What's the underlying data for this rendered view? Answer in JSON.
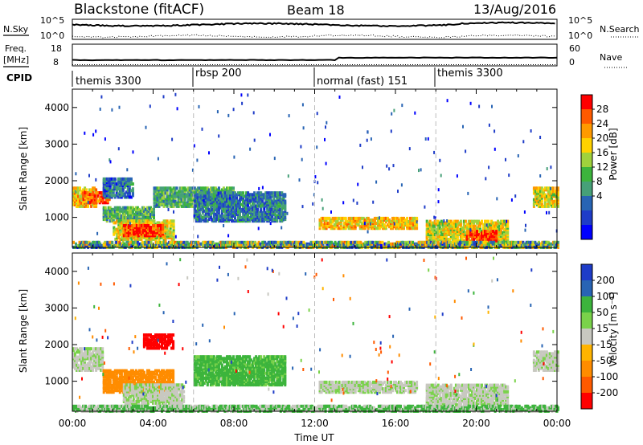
{
  "header": {
    "station": "Blackstone (fitACF)",
    "beam": "Beam 18",
    "date": "13/Aug/2016"
  },
  "aux_panels": {
    "nsky_label": "N.Sky",
    "nsearch_label": "N.Search",
    "nsky_ticks": [
      "10^5",
      "10^0"
    ],
    "nsky_right_ticks": [
      "10^5",
      "10^0"
    ],
    "freq_label_line1": "Freq.",
    "freq_label_line2": "[MHz]",
    "freq_ticks": [
      "18",
      "8"
    ],
    "nave_label": "Nave",
    "nave_ticks": [
      "60",
      "0"
    ],
    "cpid_label": "CPID",
    "cpid_modes": [
      {
        "name": "themis 3300",
        "start_hour": 0
      },
      {
        "name": "rbsp 200",
        "start_hour": 6
      },
      {
        "name": "normal (fast) 151",
        "start_hour": 12
      },
      {
        "name": "themis 3300",
        "start_hour": 18
      }
    ]
  },
  "colorbars": {
    "power": {
      "label": "Power [dB]",
      "ticks": [
        "28",
        "24",
        "20",
        "16",
        "12",
        "8",
        "4"
      ],
      "colors": [
        "#ff0000",
        "#ff5a00",
        "#ff9a00",
        "#ffd200",
        "#a0d23c",
        "#3cb43c",
        "#46a078",
        "#2864b4",
        "#1e3cc8",
        "#0000ff"
      ]
    },
    "velocity": {
      "label": "Velocity [m s⁻¹]",
      "ticks": [
        "200",
        "100",
        "50",
        "15",
        "-15",
        "-50",
        "-100",
        "-200"
      ],
      "colors": [
        "#1e3cc8",
        "#2864b4",
        "#3cb43c",
        "#7ad24a",
        "#c8c8c0",
        "#ffb400",
        "#ff8c00",
        "#ff5a00",
        "#ff0000"
      ]
    }
  },
  "axes": {
    "ylabel": "Slant Range [km]",
    "yticks": [
      "4000",
      "3000",
      "2000",
      "1000"
    ],
    "xticks": [
      "00:00",
      "04:00",
      "08:00",
      "12:00",
      "16:00",
      "20:00",
      "00:00"
    ],
    "xlabel": "Time UT"
  },
  "chart_data": {
    "type": "heatmap",
    "panels": [
      "power",
      "velocity"
    ],
    "xlabel": "Time UT",
    "ylabel": "Slant Range [km]",
    "x_range_hours": [
      0,
      24
    ],
    "ylim": [
      180,
      4500
    ],
    "mode_change_hours": [
      6,
      12,
      18
    ],
    "power_regions": [
      {
        "t0": 0.0,
        "t1": 1.2,
        "r0": 1300,
        "r1": 1800,
        "db": 22
      },
      {
        "t0": 0.5,
        "t1": 1.8,
        "r0": 1400,
        "r1": 1700,
        "db": 26
      },
      {
        "t0": 1.5,
        "t1": 3.0,
        "r0": 1550,
        "r1": 2050,
        "db": 9
      },
      {
        "t0": 1.5,
        "t1": 4.0,
        "r0": 900,
        "r1": 1300,
        "db": 14
      },
      {
        "t0": 2.0,
        "t1": 5.0,
        "r0": 400,
        "r1": 900,
        "db": 20
      },
      {
        "t0": 2.5,
        "t1": 4.5,
        "r0": 500,
        "r1": 800,
        "db": 28
      },
      {
        "t0": 4.0,
        "t1": 8.0,
        "r0": 1300,
        "r1": 1800,
        "db": 14
      },
      {
        "t0": 6.0,
        "t1": 10.5,
        "r0": 900,
        "r1": 1700,
        "db": 10
      },
      {
        "t0": 12.2,
        "t1": 17.0,
        "r0": 700,
        "r1": 1000,
        "db": 22
      },
      {
        "t0": 17.5,
        "t1": 21.5,
        "r0": 350,
        "r1": 900,
        "db": 20
      },
      {
        "t0": 19.5,
        "t1": 21.0,
        "r0": 300,
        "r1": 650,
        "db": 28
      },
      {
        "t0": 22.8,
        "t1": 24.0,
        "r0": 1300,
        "r1": 1800,
        "db": 20
      }
    ],
    "velocity_regions": [
      {
        "t0": 0.0,
        "t1": 1.5,
        "r0": 1300,
        "r1": 1900,
        "v": 0
      },
      {
        "t0": 1.5,
        "t1": 5.0,
        "r0": 700,
        "r1": 1300,
        "v": -60
      },
      {
        "t0": 2.5,
        "t1": 5.5,
        "r0": 400,
        "r1": 900,
        "v": 0
      },
      {
        "t0": 3.5,
        "t1": 5.0,
        "r0": 1900,
        "r1": 2300,
        "v": -200
      },
      {
        "t0": 6.0,
        "t1": 10.5,
        "r0": 900,
        "r1": 1700,
        "v": 40
      },
      {
        "t0": 12.2,
        "t1": 17.0,
        "r0": 700,
        "r1": 1000,
        "v": 0
      },
      {
        "t0": 17.5,
        "t1": 21.5,
        "r0": 350,
        "r1": 900,
        "v": 0
      },
      {
        "t0": 22.8,
        "t1": 24.0,
        "r0": 1300,
        "r1": 1800,
        "v": 0
      }
    ]
  }
}
